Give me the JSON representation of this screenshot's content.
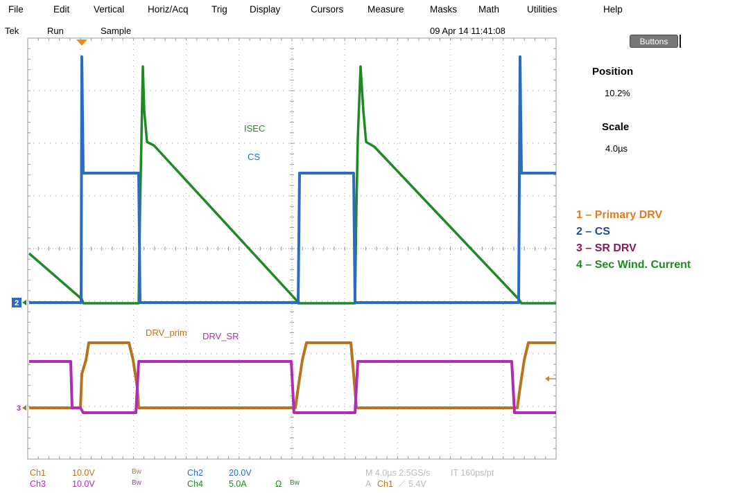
{
  "menu": [
    "File",
    "Edit",
    "Vertical",
    "Horiz/Acq",
    "Trig",
    "Display",
    "Cursors",
    "Measure",
    "Masks",
    "Math",
    "Utilities",
    "Help"
  ],
  "status": {
    "brand": "Tek",
    "run_state": "Run",
    "acq_mode": "Sample",
    "datetime": "09 Apr 14 11:41:08"
  },
  "side_panel": {
    "buttons_label": "Buttons",
    "position_label": "Position",
    "position_value": "10.2%",
    "scale_label": "Scale",
    "scale_value": "4.0µs"
  },
  "legend": [
    {
      "text": "1 – Primary DRV",
      "color": "#e07b20"
    },
    {
      "text": "2 – CS",
      "color": "#1f4e8c"
    },
    {
      "text": "3 – SR DRV",
      "color": "#8b1a5c"
    },
    {
      "text": "4 – Sec Wind. Current",
      "color": "#1f8a1f"
    }
  ],
  "trace_labels": {
    "isec": "ISEC",
    "cs": "CS",
    "drv_prim": "DRV_prim",
    "drv_sr": "DRV_SR"
  },
  "markers": {
    "ch2": "2",
    "ch3": "3"
  },
  "readout": {
    "ch1_label": "Ch1",
    "ch1_scale": "10.0V",
    "ch1_bw": "Bw",
    "ch2_label": "Ch2",
    "ch2_scale": "20.0V",
    "ch3_label": "Ch3",
    "ch3_scale": "10.0V",
    "ch3_bw": "Bw",
    "ch4_label": "Ch4",
    "ch4_scale": "5.0A",
    "ch4_ohm": "Ω",
    "ch4_bw": "Bw",
    "timebase": "M 4.0µs 2.5GS/s",
    "interp": "IT 160ps/pt",
    "trigger_prefix": "A",
    "trigger_source": "Ch1",
    "trigger_level": "5.4V"
  },
  "colors": {
    "ch1": "#b8731f",
    "ch2": "#2a6bc4",
    "ch3": "#b02cb8",
    "ch4": "#1e8a23",
    "grid": "#9a9a9a",
    "trigger": "#f08a1c"
  }
}
